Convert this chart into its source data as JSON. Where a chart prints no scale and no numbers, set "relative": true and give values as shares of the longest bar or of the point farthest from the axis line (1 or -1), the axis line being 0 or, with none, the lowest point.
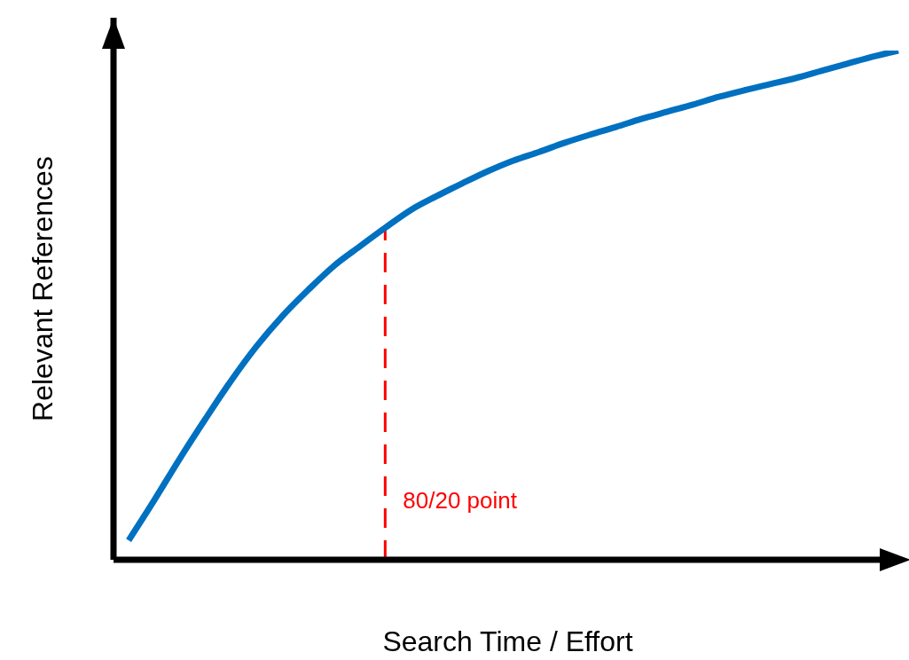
{
  "chart_data": {
    "type": "line",
    "relative": true,
    "xlabel": "Search Time / Effort",
    "ylabel": "Relevant References",
    "categories": [
      null,
      null,
      null,
      null,
      null,
      null,
      null,
      null,
      null,
      null,
      null,
      null,
      null,
      null,
      null,
      null,
      null,
      null,
      null,
      null,
      null,
      null,
      null,
      null,
      null,
      null,
      null,
      null,
      null,
      null,
      null
    ],
    "series": [
      {
        "color": "#0070c0",
        "values": [
          0.038,
          0.117,
          0.199,
          0.277,
          0.352,
          0.42,
          0.479,
          0.53,
          0.577,
          0.615,
          0.652,
          0.687,
          0.714,
          0.739,
          0.763,
          0.784,
          0.801,
          0.819,
          0.835,
          0.85,
          0.866,
          0.88,
          0.894,
          0.909,
          0.922,
          0.934,
          0.946,
          0.96,
          0.974,
          0.988,
          1
        ]
      }
    ],
    "annotations": [
      "80/20 point"
    ]
  }
}
